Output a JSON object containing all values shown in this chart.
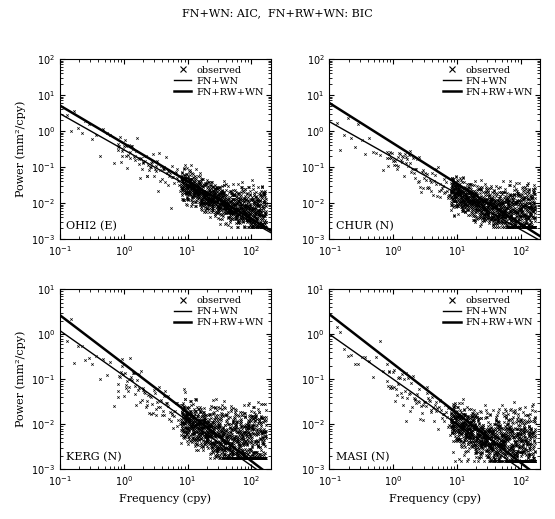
{
  "title": "FN+WN: AIC,  FN+RW+WN: BIC",
  "xlabel": "Frequency (cpy)",
  "ylabel": "Power (mm²/cpy)",
  "subplots": [
    {
      "label": "OHI2 (E)",
      "ymax": 2,
      "ymin": -3,
      "line1_slope": -1.0,
      "line1_a": 0.3,
      "line2_slope": -1.05,
      "line2_a": 0.45,
      "noise_floor": 0.008,
      "scat_a": 0.28,
      "scat_slope": -1.0,
      "scat_noise": 0.007
    },
    {
      "label": "CHUR (N)",
      "ymax": 2,
      "ymin": -3,
      "line1_slope": -1.0,
      "line1_a": 0.18,
      "line2_slope": -1.12,
      "line2_a": 0.45,
      "noise_floor": 0.008,
      "scat_a": 0.16,
      "scat_slope": -1.0,
      "scat_noise": 0.007
    },
    {
      "label": "KERG (N)",
      "ymax": 1,
      "ymin": -3,
      "line1_slope": -1.0,
      "line1_a": 0.12,
      "line2_slope": -1.08,
      "line2_a": 0.22,
      "noise_floor": 0.008,
      "scat_a": 0.1,
      "scat_slope": -1.0,
      "scat_noise": 0.006
    },
    {
      "label": "MASI (N)",
      "ymax": 1,
      "ymin": -3,
      "line1_slope": -1.0,
      "line1_a": 0.1,
      "line2_slope": -1.1,
      "line2_a": 0.22,
      "noise_floor": 0.006,
      "scat_a": 0.09,
      "scat_slope": -1.0,
      "scat_noise": 0.005
    }
  ],
  "line1_lw": 1.0,
  "line2_lw": 1.8,
  "scatter_ms": 3,
  "scatter_lw": 0.5,
  "bg_color": "#ffffff",
  "line_color": "#000000",
  "scatter_color": "#000000",
  "legend_fontsize": 7,
  "label_fontsize": 8,
  "tick_labelsize": 7,
  "title_fontsize": 8
}
